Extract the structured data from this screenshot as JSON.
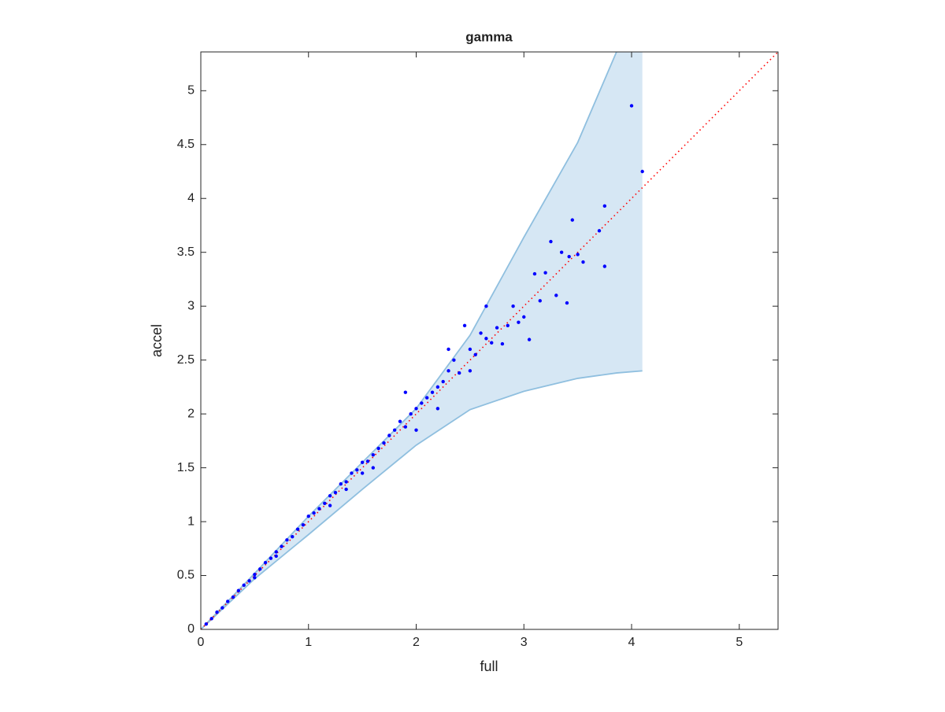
{
  "chart_data": {
    "type": "scatter",
    "title": "gamma",
    "xlabel": "full",
    "ylabel": "accel",
    "xlim": [
      0,
      5.36
    ],
    "ylim": [
      0,
      5.36
    ],
    "xticks": [
      0,
      1,
      2,
      3,
      4,
      5
    ],
    "yticks": [
      0,
      0.5,
      1,
      1.5,
      2,
      2.5,
      3,
      3.5,
      4,
      4.5,
      5
    ],
    "box": true,
    "band": {
      "color": "#d6e7f4",
      "edge_color": "#8fbfdf",
      "x": [
        0,
        0.5,
        1,
        1.5,
        2,
        2.5,
        3,
        3.5,
        3.86,
        4.1
      ],
      "upper": [
        0,
        0.52,
        1.05,
        1.55,
        2.05,
        2.73,
        3.64,
        4.52,
        5.36,
        5.87
      ],
      "lower": [
        0,
        0.47,
        0.88,
        1.3,
        1.71,
        2.04,
        2.21,
        2.33,
        2.38,
        2.4
      ]
    },
    "reference_line": {
      "color": "#ff0000",
      "x": [
        0,
        5.36
      ],
      "y": [
        0,
        5.36
      ]
    },
    "series": [
      {
        "color": "#0000ff",
        "x": [
          0.05,
          0.1,
          0.15,
          0.2,
          0.25,
          0.3,
          0.35,
          0.4,
          0.45,
          0.5,
          0.55,
          0.6,
          0.65,
          0.7,
          0.75,
          0.8,
          0.85,
          0.9,
          0.95,
          1.0,
          1.05,
          1.1,
          1.15,
          1.2,
          1.25,
          1.3,
          1.35,
          1.4,
          1.45,
          1.5,
          1.55,
          1.6,
          1.65,
          1.7,
          1.75,
          1.8,
          1.85,
          1.9,
          1.95,
          2.0,
          2.05,
          2.1,
          2.15,
          2.2,
          2.25,
          2.3,
          2.35,
          2.4,
          2.45,
          2.5,
          2.55,
          2.6,
          2.65,
          2.7,
          2.75,
          2.8,
          2.85,
          2.9,
          2.95,
          3.0,
          3.05,
          3.1,
          3.15,
          3.2,
          3.25,
          3.3,
          3.35,
          3.4,
          3.42,
          3.45,
          3.5,
          3.55,
          3.7,
          3.75,
          3.75,
          4.0,
          4.1,
          1.35,
          1.5,
          1.9,
          2.0,
          2.2,
          2.3,
          2.5,
          2.65,
          1.6,
          1.2,
          0.7,
          0.5
        ],
        "y": [
          0.05,
          0.1,
          0.16,
          0.2,
          0.26,
          0.3,
          0.36,
          0.41,
          0.45,
          0.51,
          0.56,
          0.62,
          0.66,
          0.72,
          0.77,
          0.83,
          0.86,
          0.93,
          0.97,
          1.05,
          1.08,
          1.12,
          1.17,
          1.24,
          1.27,
          1.35,
          1.37,
          1.45,
          1.48,
          1.55,
          1.56,
          1.62,
          1.68,
          1.73,
          1.8,
          1.85,
          1.93,
          1.88,
          2.0,
          2.05,
          2.1,
          2.15,
          2.2,
          2.25,
          2.3,
          2.4,
          2.5,
          2.38,
          2.82,
          2.6,
          2.55,
          2.75,
          2.7,
          2.66,
          2.8,
          2.65,
          2.82,
          3.0,
          2.85,
          2.9,
          2.69,
          3.3,
          3.05,
          3.31,
          3.6,
          3.1,
          3.5,
          3.03,
          3.46,
          3.8,
          3.48,
          3.41,
          3.7,
          3.93,
          3.37,
          4.86,
          4.25,
          1.3,
          1.45,
          2.2,
          1.85,
          2.05,
          2.6,
          2.4,
          3.0,
          1.5,
          1.15,
          0.68,
          0.48
        ]
      }
    ]
  }
}
